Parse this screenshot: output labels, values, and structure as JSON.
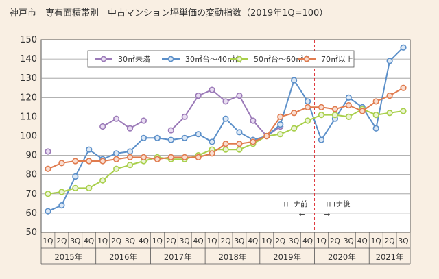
{
  "chart_data": {
    "type": "line",
    "title": "神戸市　専有面積帯別　中古マンション坪単価の変動指数（2019年1Q=100）",
    "xlabel": "",
    "ylabel": "",
    "ylim": [
      50,
      150
    ],
    "yticks": [
      50,
      60,
      70,
      80,
      90,
      100,
      110,
      120,
      130,
      140,
      150
    ],
    "grid": true,
    "legend": "top",
    "reference_line": 100,
    "categories": [
      "2015-1Q",
      "2015-2Q",
      "2015-3Q",
      "2015-4Q",
      "2016-1Q",
      "2016-2Q",
      "2016-3Q",
      "2016-4Q",
      "2017-1Q",
      "2017-2Q",
      "2017-3Q",
      "2017-4Q",
      "2018-1Q",
      "2018-2Q",
      "2018-3Q",
      "2018-4Q",
      "2019-1Q",
      "2019-2Q",
      "2019-3Q",
      "2019-4Q",
      "2020-1Q",
      "2020-2Q",
      "2020-3Q",
      "2020-4Q",
      "2021-1Q",
      "2021-2Q",
      "2021-3Q"
    ],
    "quarter_labels": [
      "1Q",
      "2Q",
      "3Q",
      "4Q"
    ],
    "years": [
      {
        "label": "2015年",
        "start": 0,
        "end": 3
      },
      {
        "label": "2016年",
        "start": 4,
        "end": 7
      },
      {
        "label": "2017年",
        "start": 8,
        "end": 11
      },
      {
        "label": "2018年",
        "start": 12,
        "end": 15
      },
      {
        "label": "2019年",
        "start": 16,
        "end": 19
      },
      {
        "label": "2020年",
        "start": 20,
        "end": 23
      },
      {
        "label": "2021年",
        "start": 24,
        "end": 26
      }
    ],
    "series": [
      {
        "name": "30㎡未満",
        "color": "#9b7ab8",
        "fill": "#e9ddf2",
        "values": [
          92,
          null,
          null,
          null,
          105,
          109,
          104,
          108,
          null,
          103,
          110,
          121,
          124,
          118,
          121,
          108,
          100,
          105,
          null,
          null,
          null,
          null,
          null,
          null,
          null,
          null,
          null
        ]
      },
      {
        "name": "30㎡台～40㎡台",
        "color": "#5b8fc9",
        "fill": "#dde9f6",
        "values": [
          61,
          64,
          79,
          93,
          88,
          91,
          92,
          99,
          99,
          98,
          99,
          101,
          97,
          109,
          102,
          98,
          100,
          106,
          129,
          118,
          98,
          109,
          120,
          115,
          104,
          139,
          146
        ]
      },
      {
        "name": "50㎡台～60㎡台",
        "color": "#a8cf4a",
        "fill": "#ecf5d6",
        "values": [
          70,
          71,
          73,
          73,
          77,
          83,
          85,
          87,
          89,
          88,
          88,
          90,
          93,
          93,
          93,
          96,
          100,
          101,
          104,
          108,
          111,
          111,
          110,
          114,
          111,
          112,
          113
        ]
      },
      {
        "name": "70㎡以上",
        "color": "#e07b4e",
        "fill": "#f9ded2",
        "values": [
          83,
          86,
          87,
          87,
          87,
          88,
          89,
          89,
          88,
          89,
          89,
          89,
          91,
          96,
          96,
          97,
          100,
          110,
          112,
          115,
          115,
          114,
          116,
          113,
          118,
          121,
          125
        ]
      }
    ],
    "annotations": [
      {
        "text": "コロナ前",
        "arrow": "←"
      },
      {
        "text": "コロナ後",
        "arrow": "→"
      }
    ],
    "divider_after_category": 19
  }
}
